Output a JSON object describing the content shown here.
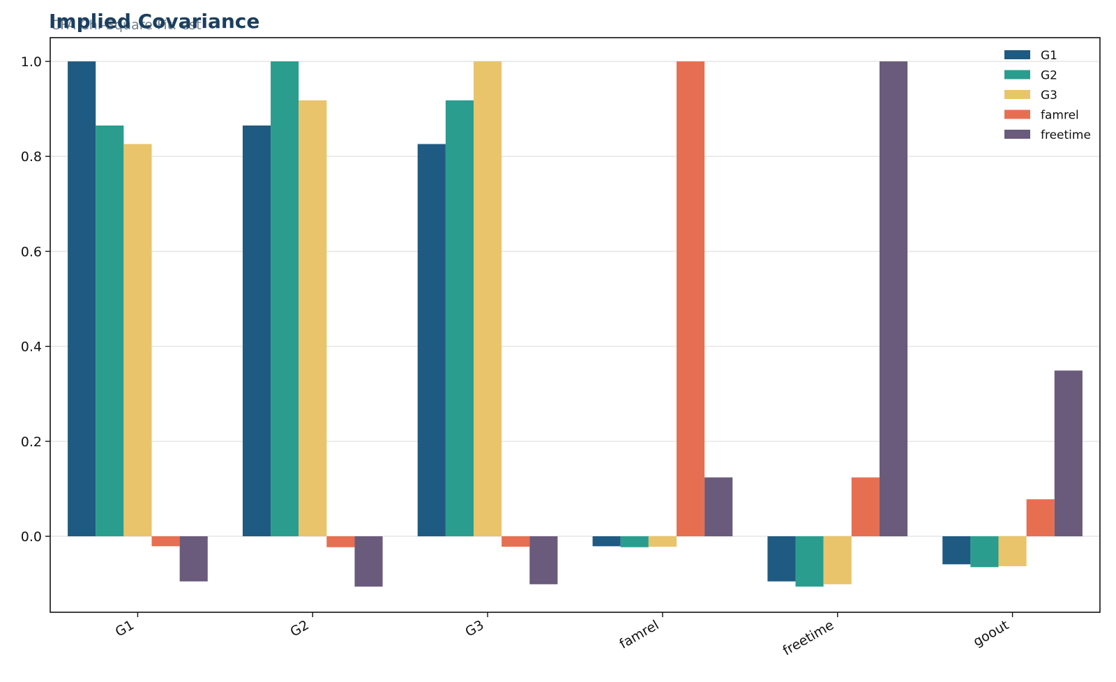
{
  "chart_data": {
    "type": "bar",
    "title": "Implied Covariance",
    "subtitle": "CFA Chi-Square Fit: est",
    "xlabel": "",
    "ylabel": "",
    "categories": [
      "G1",
      "G2",
      "G3",
      "famrel",
      "freetime",
      "goout"
    ],
    "series": [
      {
        "name": "G1",
        "color": "#1f5a82",
        "values": [
          1.0,
          0.865,
          0.826,
          -0.021,
          -0.095,
          -0.059
        ]
      },
      {
        "name": "G2",
        "color": "#2a9d8f",
        "values": [
          0.865,
          1.0,
          0.918,
          -0.023,
          -0.106,
          -0.065
        ]
      },
      {
        "name": "G3",
        "color": "#e9c46a",
        "values": [
          0.826,
          0.918,
          1.0,
          -0.022,
          -0.101,
          -0.063
        ]
      },
      {
        "name": "famrel",
        "color": "#e76f51",
        "values": [
          -0.021,
          -0.023,
          -0.022,
          1.0,
          0.124,
          0.078
        ]
      },
      {
        "name": "freetime",
        "color": "#6a5a7b",
        "values": [
          -0.095,
          -0.106,
          -0.101,
          0.124,
          1.0,
          0.349
        ]
      }
    ],
    "ylim": [
      -0.16,
      1.05
    ],
    "yticks": [
      0.0,
      0.2,
      0.4,
      0.6,
      0.8,
      1.0
    ],
    "ytick_labels": [
      "0.0",
      "0.2",
      "0.4",
      "0.6",
      "0.8",
      "1.0"
    ],
    "grid": "horizontal",
    "legend_position": "top-right",
    "xtick_rotation": "30deg"
  }
}
